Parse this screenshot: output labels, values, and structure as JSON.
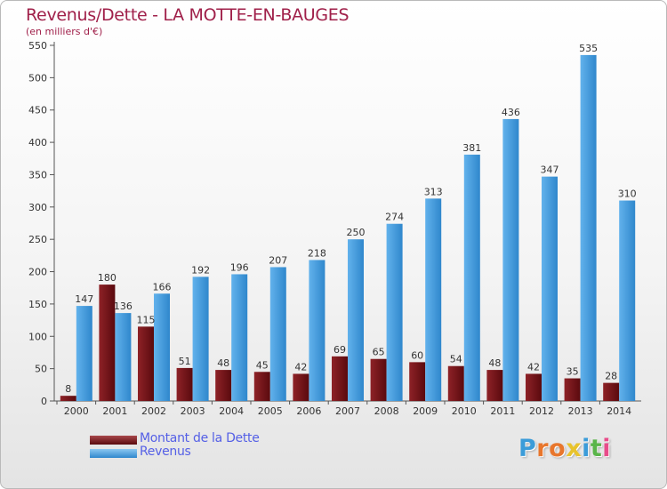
{
  "title": "Revenus/Dette - LA MOTTE-EN-BAUGES",
  "subtitle": "(en milliers d'€)",
  "chart_data": {
    "type": "bar",
    "categories": [
      "2000",
      "2001",
      "2002",
      "2003",
      "2004",
      "2005",
      "2006",
      "2007",
      "2008",
      "2009",
      "2010",
      "2011",
      "2012",
      "2013",
      "2014"
    ],
    "series": [
      {
        "name": "Montant de la Dette",
        "color": "#7a1418",
        "values": [
          8,
          180,
          115,
          51,
          48,
          45,
          42,
          69,
          65,
          60,
          54,
          48,
          42,
          35,
          28
        ]
      },
      {
        "name": "Revenus",
        "color": "#4aa3e6",
        "values": [
          147,
          136,
          166,
          192,
          196,
          207,
          218,
          250,
          274,
          313,
          381,
          436,
          347,
          535,
          310
        ]
      }
    ],
    "ylim": [
      0,
      550
    ],
    "yticks": [
      0,
      50,
      100,
      150,
      200,
      250,
      300,
      350,
      400,
      450,
      500,
      550
    ],
    "grid": false,
    "legend_position": "bottom-left"
  },
  "legend": {
    "dette_label": "Montant de la Dette",
    "revenus_label": "Revenus"
  },
  "logo": {
    "text": "Proxiti",
    "colors": [
      "#3b9cd9",
      "#e8762c",
      "#e8762c",
      "#e8c32c",
      "#3b9cd9",
      "#5ab54a",
      "#e84c8a"
    ]
  }
}
